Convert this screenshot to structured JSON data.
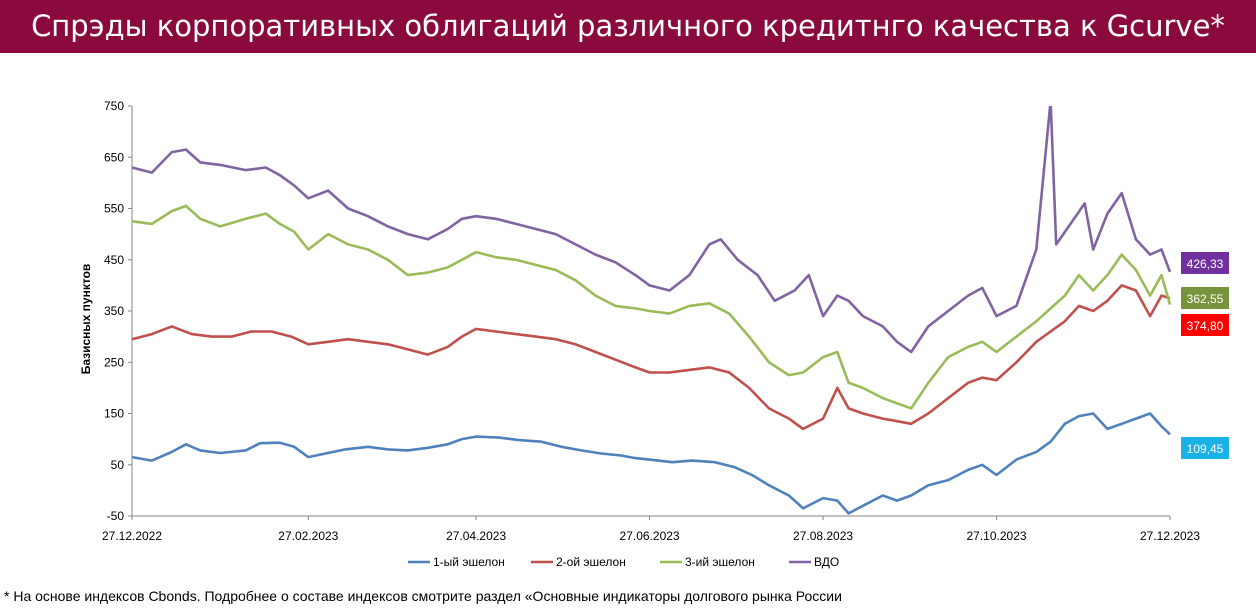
{
  "header": {
    "title": "Спрэды корпоративных облигаций  различного кредитнго качества к Gcurve*",
    "background_color": "#8b0a3e"
  },
  "footnote": "* На основе индексов Cbonds. Подробнее о составе индексов смотрите раздел «Основные индикаторы долгового рынка России",
  "chart_data": {
    "type": "line",
    "title": "",
    "xlabel": "",
    "ylabel": "Базисных пунктов",
    "ylim": [
      -50,
      750
    ],
    "yticks": [
      -50,
      50,
      150,
      250,
      350,
      450,
      550,
      650,
      750
    ],
    "x_range": [
      "27.12.2022",
      "27.12.2023"
    ],
    "xticks": [
      "27.12.2022",
      "27.02.2023",
      "27.04.2023",
      "27.06.2023",
      "27.08.2023",
      "27.10.2023",
      "27.12.2023"
    ],
    "grid": false,
    "legend_position": "bottom",
    "series": [
      {
        "name": "1-ый эшелон",
        "color": "#4f81bd",
        "last_value_label": "109,45",
        "badge_color": "#1ab0e8",
        "values": [
          [
            "27.12.2022",
            65
          ],
          [
            "03.01.2023",
            58
          ],
          [
            "10.01.2023",
            75
          ],
          [
            "15.01.2023",
            90
          ],
          [
            "20.01.2023",
            78
          ],
          [
            "27.01.2023",
            73
          ],
          [
            "05.02.2023",
            78
          ],
          [
            "10.02.2023",
            92
          ],
          [
            "17.02.2023",
            93
          ],
          [
            "22.02.2023",
            85
          ],
          [
            "27.02.2023",
            65
          ],
          [
            "05.03.2023",
            72
          ],
          [
            "12.03.2023",
            80
          ],
          [
            "20.03.2023",
            85
          ],
          [
            "27.03.2023",
            80
          ],
          [
            "03.04.2023",
            78
          ],
          [
            "10.04.2023",
            83
          ],
          [
            "17.04.2023",
            90
          ],
          [
            "22.04.2023",
            100
          ],
          [
            "27.04.2023",
            105
          ],
          [
            "05.05.2023",
            103
          ],
          [
            "12.05.2023",
            98
          ],
          [
            "20.05.2023",
            95
          ],
          [
            "27.05.2023",
            85
          ],
          [
            "03.06.2023",
            78
          ],
          [
            "10.06.2023",
            72
          ],
          [
            "17.06.2023",
            68
          ],
          [
            "22.06.2023",
            63
          ],
          [
            "27.06.2023",
            60
          ],
          [
            "05.07.2023",
            55
          ],
          [
            "12.07.2023",
            58
          ],
          [
            "20.07.2023",
            55
          ],
          [
            "27.07.2023",
            45
          ],
          [
            "02.08.2023",
            30
          ],
          [
            "08.08.2023",
            10
          ],
          [
            "15.08.2023",
            -10
          ],
          [
            "20.08.2023",
            -35
          ],
          [
            "27.08.2023",
            -15
          ],
          [
            "01.09.2023",
            -20
          ],
          [
            "05.09.2023",
            -45
          ],
          [
            "10.09.2023",
            -30
          ],
          [
            "17.09.2023",
            -10
          ],
          [
            "22.09.2023",
            -20
          ],
          [
            "27.09.2023",
            -10
          ],
          [
            "03.10.2023",
            10
          ],
          [
            "10.10.2023",
            20
          ],
          [
            "17.10.2023",
            40
          ],
          [
            "22.10.2023",
            50
          ],
          [
            "27.10.2023",
            30
          ],
          [
            "03.11.2023",
            60
          ],
          [
            "10.11.2023",
            75
          ],
          [
            "15.11.2023",
            95
          ],
          [
            "20.11.2023",
            130
          ],
          [
            "25.11.2023",
            145
          ],
          [
            "30.11.2023",
            150
          ],
          [
            "05.12.2023",
            120
          ],
          [
            "10.12.2023",
            130
          ],
          [
            "15.12.2023",
            140
          ],
          [
            "20.12.2023",
            150
          ],
          [
            "24.12.2023",
            125
          ],
          [
            "27.12.2023",
            109.45
          ]
        ]
      },
      {
        "name": "2-ой эшелон",
        "color": "#c0504d",
        "last_value_label": "374,80",
        "badge_color": "#ff0000",
        "values": [
          [
            "27.12.2022",
            295
          ],
          [
            "03.01.2023",
            305
          ],
          [
            "10.01.2023",
            320
          ],
          [
            "17.01.2023",
            305
          ],
          [
            "24.01.2023",
            300
          ],
          [
            "31.01.2023",
            300
          ],
          [
            "07.02.2023",
            310
          ],
          [
            "14.02.2023",
            310
          ],
          [
            "21.02.2023",
            300
          ],
          [
            "27.02.2023",
            285
          ],
          [
            "06.03.2023",
            290
          ],
          [
            "13.03.2023",
            295
          ],
          [
            "20.03.2023",
            290
          ],
          [
            "27.03.2023",
            285
          ],
          [
            "03.04.2023",
            275
          ],
          [
            "10.04.2023",
            265
          ],
          [
            "17.04.2023",
            280
          ],
          [
            "22.04.2023",
            300
          ],
          [
            "27.04.2023",
            315
          ],
          [
            "04.05.2023",
            310
          ],
          [
            "11.05.2023",
            305
          ],
          [
            "18.05.2023",
            300
          ],
          [
            "25.05.2023",
            295
          ],
          [
            "01.06.2023",
            285
          ],
          [
            "08.06.2023",
            270
          ],
          [
            "15.06.2023",
            255
          ],
          [
            "22.06.2023",
            240
          ],
          [
            "27.06.2023",
            230
          ],
          [
            "04.07.2023",
            230
          ],
          [
            "11.07.2023",
            235
          ],
          [
            "18.07.2023",
            240
          ],
          [
            "25.07.2023",
            230
          ],
          [
            "01.08.2023",
            200
          ],
          [
            "08.08.2023",
            160
          ],
          [
            "15.08.2023",
            140
          ],
          [
            "20.08.2023",
            120
          ],
          [
            "27.08.2023",
            140
          ],
          [
            "01.09.2023",
            200
          ],
          [
            "05.09.2023",
            160
          ],
          [
            "10.09.2023",
            150
          ],
          [
            "17.09.2023",
            140
          ],
          [
            "22.09.2023",
            135
          ],
          [
            "27.09.2023",
            130
          ],
          [
            "03.10.2023",
            150
          ],
          [
            "10.10.2023",
            180
          ],
          [
            "17.10.2023",
            210
          ],
          [
            "22.10.2023",
            220
          ],
          [
            "27.10.2023",
            215
          ],
          [
            "03.11.2023",
            250
          ],
          [
            "10.11.2023",
            290
          ],
          [
            "15.11.2023",
            310
          ],
          [
            "20.11.2023",
            330
          ],
          [
            "25.11.2023",
            360
          ],
          [
            "30.11.2023",
            350
          ],
          [
            "05.12.2023",
            370
          ],
          [
            "10.12.2023",
            400
          ],
          [
            "15.12.2023",
            390
          ],
          [
            "20.12.2023",
            340
          ],
          [
            "24.12.2023",
            380
          ],
          [
            "27.12.2023",
            374.8
          ]
        ]
      },
      {
        "name": "3-ий эшелон",
        "color": "#9bbb59",
        "last_value_label": "362,55",
        "badge_color": "#77933c",
        "values": [
          [
            "27.12.2022",
            525
          ],
          [
            "03.01.2023",
            520
          ],
          [
            "10.01.2023",
            545
          ],
          [
            "15.01.2023",
            555
          ],
          [
            "20.01.2023",
            530
          ],
          [
            "27.01.2023",
            515
          ],
          [
            "05.02.2023",
            530
          ],
          [
            "12.02.2023",
            540
          ],
          [
            "17.02.2023",
            520
          ],
          [
            "22.02.2023",
            505
          ],
          [
            "27.02.2023",
            470
          ],
          [
            "06.03.2023",
            500
          ],
          [
            "13.03.2023",
            480
          ],
          [
            "20.03.2023",
            470
          ],
          [
            "27.03.2023",
            450
          ],
          [
            "03.04.2023",
            420
          ],
          [
            "10.04.2023",
            425
          ],
          [
            "17.04.2023",
            435
          ],
          [
            "22.04.2023",
            450
          ],
          [
            "27.04.2023",
            465
          ],
          [
            "04.05.2023",
            455
          ],
          [
            "11.05.2023",
            450
          ],
          [
            "18.05.2023",
            440
          ],
          [
            "25.05.2023",
            430
          ],
          [
            "01.06.2023",
            410
          ],
          [
            "08.06.2023",
            380
          ],
          [
            "15.06.2023",
            360
          ],
          [
            "22.06.2023",
            355
          ],
          [
            "27.06.2023",
            350
          ],
          [
            "04.07.2023",
            345
          ],
          [
            "11.07.2023",
            360
          ],
          [
            "18.07.2023",
            365
          ],
          [
            "25.07.2023",
            345
          ],
          [
            "01.08.2023",
            300
          ],
          [
            "08.08.2023",
            250
          ],
          [
            "15.08.2023",
            225
          ],
          [
            "20.08.2023",
            230
          ],
          [
            "27.08.2023",
            260
          ],
          [
            "01.09.2023",
            270
          ],
          [
            "05.09.2023",
            210
          ],
          [
            "10.09.2023",
            200
          ],
          [
            "17.09.2023",
            180
          ],
          [
            "22.09.2023",
            170
          ],
          [
            "27.09.2023",
            160
          ],
          [
            "03.10.2023",
            210
          ],
          [
            "10.10.2023",
            260
          ],
          [
            "17.10.2023",
            280
          ],
          [
            "22.10.2023",
            290
          ],
          [
            "27.10.2023",
            270
          ],
          [
            "03.11.2023",
            300
          ],
          [
            "10.11.2023",
            330
          ],
          [
            "15.11.2023",
            355
          ],
          [
            "20.11.2023",
            380
          ],
          [
            "25.11.2023",
            420
          ],
          [
            "30.11.2023",
            390
          ],
          [
            "05.12.2023",
            420
          ],
          [
            "10.12.2023",
            460
          ],
          [
            "15.12.2023",
            430
          ],
          [
            "20.12.2023",
            380
          ],
          [
            "24.12.2023",
            420
          ],
          [
            "27.12.2023",
            362.55
          ]
        ]
      },
      {
        "name": "ВДО",
        "color": "#8064a2",
        "last_value_label": "426,33",
        "badge_color": "#7030a0",
        "values": [
          [
            "27.12.2022",
            630
          ],
          [
            "03.01.2023",
            620
          ],
          [
            "10.01.2023",
            660
          ],
          [
            "15.01.2023",
            665
          ],
          [
            "20.01.2023",
            640
          ],
          [
            "27.01.2023",
            635
          ],
          [
            "05.02.2023",
            625
          ],
          [
            "12.02.2023",
            630
          ],
          [
            "17.02.2023",
            615
          ],
          [
            "22.02.2023",
            595
          ],
          [
            "27.02.2023",
            570
          ],
          [
            "06.03.2023",
            585
          ],
          [
            "13.03.2023",
            550
          ],
          [
            "20.03.2023",
            535
          ],
          [
            "27.03.2023",
            515
          ],
          [
            "03.04.2023",
            500
          ],
          [
            "10.04.2023",
            490
          ],
          [
            "17.04.2023",
            510
          ],
          [
            "22.04.2023",
            530
          ],
          [
            "27.04.2023",
            535
          ],
          [
            "04.05.2023",
            530
          ],
          [
            "11.05.2023",
            520
          ],
          [
            "18.05.2023",
            510
          ],
          [
            "25.05.2023",
            500
          ],
          [
            "01.06.2023",
            480
          ],
          [
            "08.06.2023",
            460
          ],
          [
            "15.06.2023",
            445
          ],
          [
            "22.06.2023",
            420
          ],
          [
            "27.06.2023",
            400
          ],
          [
            "04.07.2023",
            390
          ],
          [
            "11.07.2023",
            420
          ],
          [
            "18.07.2023",
            480
          ],
          [
            "22.07.2023",
            490
          ],
          [
            "28.07.2023",
            450
          ],
          [
            "04.08.2023",
            420
          ],
          [
            "10.08.2023",
            370
          ],
          [
            "17.08.2023",
            390
          ],
          [
            "22.08.2023",
            420
          ],
          [
            "27.08.2023",
            340
          ],
          [
            "01.09.2023",
            380
          ],
          [
            "05.09.2023",
            370
          ],
          [
            "10.09.2023",
            340
          ],
          [
            "17.09.2023",
            320
          ],
          [
            "22.09.2023",
            290
          ],
          [
            "27.09.2023",
            270
          ],
          [
            "03.10.2023",
            320
          ],
          [
            "10.10.2023",
            350
          ],
          [
            "17.10.2023",
            380
          ],
          [
            "22.10.2023",
            395
          ],
          [
            "27.10.2023",
            340
          ],
          [
            "03.11.2023",
            360
          ],
          [
            "10.11.2023",
            470
          ],
          [
            "15.11.2023",
            760
          ],
          [
            "17.11.2023",
            480
          ],
          [
            "22.11.2023",
            520
          ],
          [
            "27.11.2023",
            560
          ],
          [
            "30.11.2023",
            470
          ],
          [
            "05.12.2023",
            540
          ],
          [
            "10.12.2023",
            580
          ],
          [
            "15.12.2023",
            490
          ],
          [
            "20.12.2023",
            460
          ],
          [
            "24.12.2023",
            470
          ],
          [
            "27.12.2023",
            426.33
          ]
        ]
      }
    ]
  }
}
